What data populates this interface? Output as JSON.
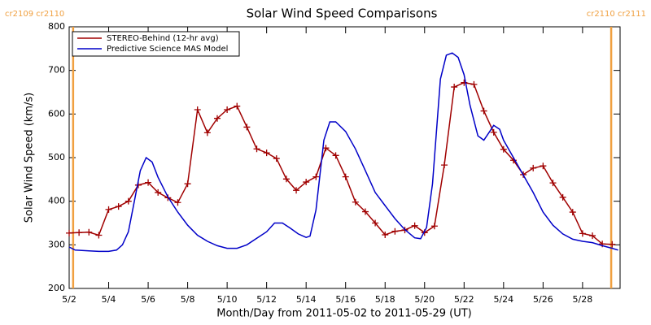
{
  "chart_data": {
    "type": "line",
    "title": "Solar Wind Speed Comparisons",
    "xlabel": "Month/Day from 2011-05-02 to 2011-05-29 (UT)",
    "ylabel": "Solar Wind Speed (km/s)",
    "xlim": [
      2,
      29.9
    ],
    "ylim": [
      200,
      800
    ],
    "xticks": [
      {
        "value": 2,
        "label": "5/2"
      },
      {
        "value": 4,
        "label": "5/4"
      },
      {
        "value": 6,
        "label": "5/6"
      },
      {
        "value": 8,
        "label": "5/8"
      },
      {
        "value": 10,
        "label": "5/10"
      },
      {
        "value": 12,
        "label": "5/12"
      },
      {
        "value": 14,
        "label": "5/14"
      },
      {
        "value": 16,
        "label": "5/16"
      },
      {
        "value": 18,
        "label": "5/18"
      },
      {
        "value": 20,
        "label": "5/20"
      },
      {
        "value": 22,
        "label": "5/22"
      },
      {
        "value": 24,
        "label": "5/24"
      },
      {
        "value": 26,
        "label": "5/26"
      },
      {
        "value": 28,
        "label": "5/28"
      }
    ],
    "yticks": [
      200,
      300,
      400,
      500,
      600,
      700,
      800
    ],
    "grid": false,
    "legend": "upper left",
    "annotations": [
      {
        "x": 2.2,
        "label": "cr2109 cr2110",
        "color": "#f0a040"
      },
      {
        "x": 29.45,
        "label": "cr2110 cr2111",
        "color": "#f0a040"
      }
    ],
    "series": [
      {
        "name": "STEREO-Behind (12-hr avg)",
        "color": "#a00000",
        "marker": "+",
        "x": [
          2.0,
          2.5,
          3.0,
          3.5,
          4.0,
          4.5,
          5.0,
          5.5,
          6.0,
          6.5,
          7.0,
          7.5,
          8.0,
          8.5,
          9.0,
          9.5,
          10.0,
          10.5,
          11.0,
          11.5,
          12.0,
          12.5,
          13.0,
          13.5,
          14.0,
          14.5,
          15.0,
          15.5,
          16.0,
          16.5,
          17.0,
          17.5,
          18.0,
          18.5,
          19.0,
          19.5,
          20.0,
          20.5,
          21.0,
          21.5,
          22.0,
          22.5,
          23.0,
          23.5,
          24.0,
          24.5,
          25.0,
          25.5,
          26.0,
          26.5,
          27.0,
          27.5,
          28.0,
          28.5,
          29.0,
          29.5
        ],
        "values": [
          327,
          328,
          329,
          322,
          381,
          388,
          400,
          437,
          443,
          420,
          408,
          397,
          440,
          610,
          557,
          590,
          610,
          618,
          570,
          520,
          511,
          498,
          451,
          425,
          444,
          456,
          522,
          505,
          456,
          398,
          376,
          350,
          323,
          331,
          334,
          344,
          328,
          343,
          483,
          662,
          672,
          668,
          607,
          558,
          519,
          494,
          461,
          476,
          481,
          442,
          409,
          375,
          326,
          321,
          302,
          301
        ]
      },
      {
        "name": "Predictive Science MAS Model",
        "color": "#0000c8",
        "x": [
          2.0,
          2.3,
          3.0,
          3.5,
          4.0,
          4.4,
          4.7,
          5.0,
          5.3,
          5.6,
          5.9,
          6.2,
          6.5,
          7.0,
          7.5,
          8.0,
          8.5,
          9.0,
          9.5,
          10.0,
          10.5,
          11.0,
          11.5,
          12.0,
          12.4,
          12.8,
          13.2,
          13.6,
          14.0,
          14.2,
          14.5,
          14.9,
          15.2,
          15.5,
          16.0,
          16.5,
          17.0,
          17.5,
          18.0,
          18.5,
          19.0,
          19.5,
          19.8,
          20.1,
          20.4,
          20.8,
          21.1,
          21.4,
          21.7,
          22.0,
          22.3,
          22.7,
          23.0,
          23.3,
          23.5,
          23.8,
          24.0,
          24.5,
          25.0,
          25.5,
          26.0,
          26.5,
          27.0,
          27.5,
          28.0,
          28.5,
          29.0,
          29.5,
          29.8
        ],
        "values": [
          295,
          288,
          286,
          285,
          285,
          288,
          300,
          330,
          400,
          470,
          500,
          490,
          455,
          410,
          375,
          345,
          322,
          308,
          298,
          292,
          292,
          300,
          315,
          330,
          350,
          350,
          338,
          325,
          317,
          320,
          380,
          540,
          582,
          582,
          560,
          520,
          470,
          420,
          390,
          360,
          335,
          316,
          314,
          340,
          440,
          680,
          735,
          740,
          730,
          690,
          620,
          550,
          540,
          560,
          574,
          565,
          540,
          500,
          460,
          420,
          375,
          345,
          325,
          313,
          308,
          305,
          298,
          292,
          288
        ]
      }
    ]
  }
}
